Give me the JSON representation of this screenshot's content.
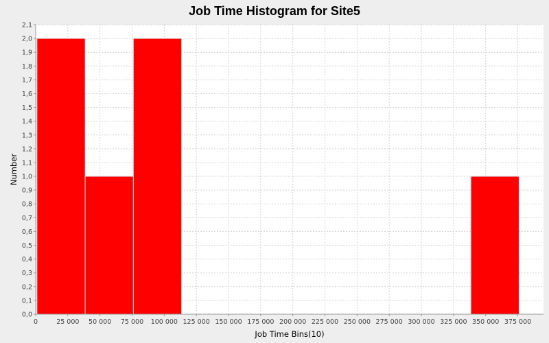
{
  "chart_data": {
    "type": "bar",
    "title": "Job Time Histogram for Site5",
    "xlabel": "Job Time Bins(10)",
    "ylabel": "Number",
    "xlim": [
      0,
      395000
    ],
    "ylim": [
      0,
      2.1
    ],
    "bin_width": 37500,
    "bins": [
      {
        "start": 1000,
        "end": 38500,
        "count": 2
      },
      {
        "start": 38500,
        "end": 76000,
        "count": 1
      },
      {
        "start": 76000,
        "end": 113500,
        "count": 2
      },
      {
        "start": 338500,
        "end": 376000,
        "count": 1
      }
    ],
    "xticks": [
      {
        "value": 0,
        "label": "0"
      },
      {
        "value": 25000,
        "label": "25 000"
      },
      {
        "value": 50000,
        "label": "50 000"
      },
      {
        "value": 75000,
        "label": "75 000"
      },
      {
        "value": 100000,
        "label": "100 000"
      },
      {
        "value": 125000,
        "label": "125 000"
      },
      {
        "value": 150000,
        "label": "150 000"
      },
      {
        "value": 175000,
        "label": "175 000"
      },
      {
        "value": 200000,
        "label": "200 000"
      },
      {
        "value": 225000,
        "label": "225 000"
      },
      {
        "value": 250000,
        "label": "250 000"
      },
      {
        "value": 275000,
        "label": "275 000"
      },
      {
        "value": 300000,
        "label": "300 000"
      },
      {
        "value": 325000,
        "label": "325 000"
      },
      {
        "value": 350000,
        "label": "350 000"
      },
      {
        "value": 375000,
        "label": "375 000"
      }
    ],
    "yticks": [
      {
        "value": 0.0,
        "label": "0,0"
      },
      {
        "value": 0.1,
        "label": "0,1"
      },
      {
        "value": 0.2,
        "label": "0,2"
      },
      {
        "value": 0.3,
        "label": "0,3"
      },
      {
        "value": 0.4,
        "label": "0,4"
      },
      {
        "value": 0.5,
        "label": "0,5"
      },
      {
        "value": 0.6,
        "label": "0,6"
      },
      {
        "value": 0.7,
        "label": "0,7"
      },
      {
        "value": 0.8,
        "label": "0,8"
      },
      {
        "value": 0.9,
        "label": "0,9"
      },
      {
        "value": 1.0,
        "label": "1,0"
      },
      {
        "value": 1.1,
        "label": "1,1"
      },
      {
        "value": 1.2,
        "label": "1,2"
      },
      {
        "value": 1.3,
        "label": "1,3"
      },
      {
        "value": 1.4,
        "label": "1,4"
      },
      {
        "value": 1.5,
        "label": "1,5"
      },
      {
        "value": 1.6,
        "label": "1,6"
      },
      {
        "value": 1.7,
        "label": "1,7"
      },
      {
        "value": 1.8,
        "label": "1,8"
      },
      {
        "value": 1.9,
        "label": "1,9"
      },
      {
        "value": 2.0,
        "label": "2,0"
      },
      {
        "value": 2.1,
        "label": "2,1"
      }
    ],
    "grid": true,
    "legend": "none",
    "colors": {
      "bar": "#ff0000",
      "bar_edge": "#d8d8d8",
      "plot_background": "#ffffff",
      "page_background": "#eeeeee",
      "grid": "#d4d4d4",
      "axis": "#999999"
    }
  }
}
